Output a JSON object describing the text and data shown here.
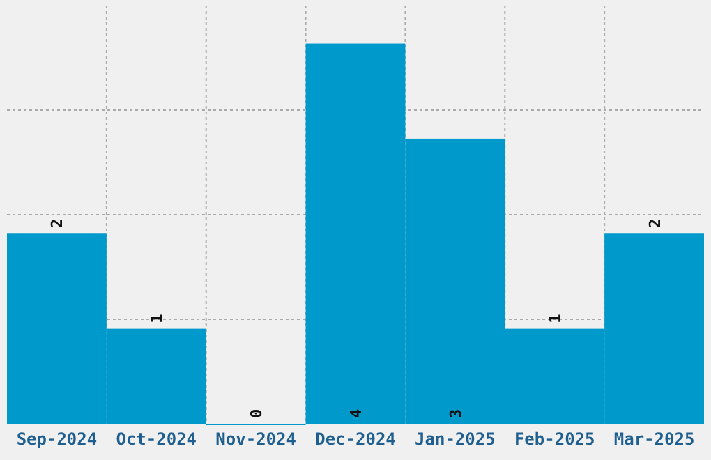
{
  "chart_data": {
    "type": "bar",
    "categories": [
      "Sep-2024",
      "Oct-2024",
      "Nov-2024",
      "Dec-2024",
      "Jan-2025",
      "Feb-2025",
      "Mar-2025"
    ],
    "values": [
      2,
      1,
      0,
      4,
      3,
      1,
      2
    ],
    "color": "#0099cc",
    "data_labels": true,
    "grid": true,
    "ylim": [
      0,
      4.4
    ],
    "yticks": [
      {
        "value": 1.1,
        "label": null
      },
      {
        "value": 2.2,
        "label": null
      },
      {
        "value": 3.3,
        "label": null
      }
    ],
    "tick_labels": "x"
  }
}
